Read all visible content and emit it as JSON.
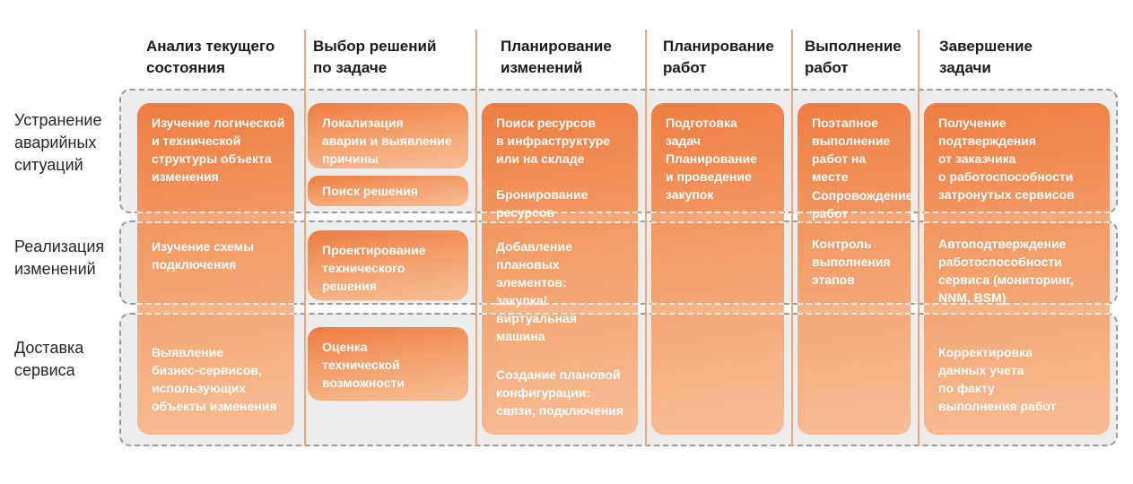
{
  "board": {
    "columns": [
      {
        "header": "Анализ текущего\nсостояния",
        "items": [
          "Изучение логической\nи технической\nструктуры объекта\nизменения",
          "Изучение схемы\nподключения",
          "Выявление\nбизнес-сервисов,\nиспользующих\nобъекты изменения"
        ]
      },
      {
        "header": "Выбор решений\nпо задаче",
        "items": [
          "Локализация\nаварии и выявление\nпричины",
          "Поиск решения",
          "Проектирование\nтехнического\nрешения",
          "Оценка\nтехнической\nвозможности"
        ]
      },
      {
        "header": "Планирование\nизменений",
        "items": [
          "Поиск ресурсов\nв инфраструктуре\nили на складе",
          "Бронирование\nресурсов",
          "Добавление\nплановых\nэлементов:\nзакупка/\nвиртуальная\nмашина",
          "Создание плановой\nконфигурации:\nсвязи, подключения"
        ]
      },
      {
        "header": "Планирование\nработ",
        "items": [
          "Подготовка задач",
          "Планирование\nи проведение\nзакупок"
        ]
      },
      {
        "header": "Выполнение\nработ",
        "items": [
          "Поэтапное\nвыполнение\nработ на месте",
          "Сопровождение\nработ",
          "Контроль\nвыполнения\nэтапов"
        ]
      },
      {
        "header": "Завершение\nзадачи",
        "items": [
          "Получение\nподтверждения\nот заказчика\nо работоспособности\nзатронутых сервисов",
          "Автоподтверждение\nработоспособности\nсервиса (мониторинг,\nNNM, BSM)",
          "Корректировка\nданных учета\nпо факту\nвыполнения работ"
        ]
      }
    ],
    "rows": [
      {
        "label": "Устранение\nаварийных\nситуаций"
      },
      {
        "label": "Реализация\nизменений"
      },
      {
        "label": "Доставка\nсервиса"
      }
    ],
    "colors": {
      "card_gradient_start": "#EE7D42",
      "card_gradient_end": "#F8BD96",
      "column_divider": "#F6A57B",
      "lane_fill": "#ECECEC",
      "lane_border": "#9A9A9A",
      "header_text": "#1A1A1A",
      "card_text": "#FFFFFF"
    }
  }
}
